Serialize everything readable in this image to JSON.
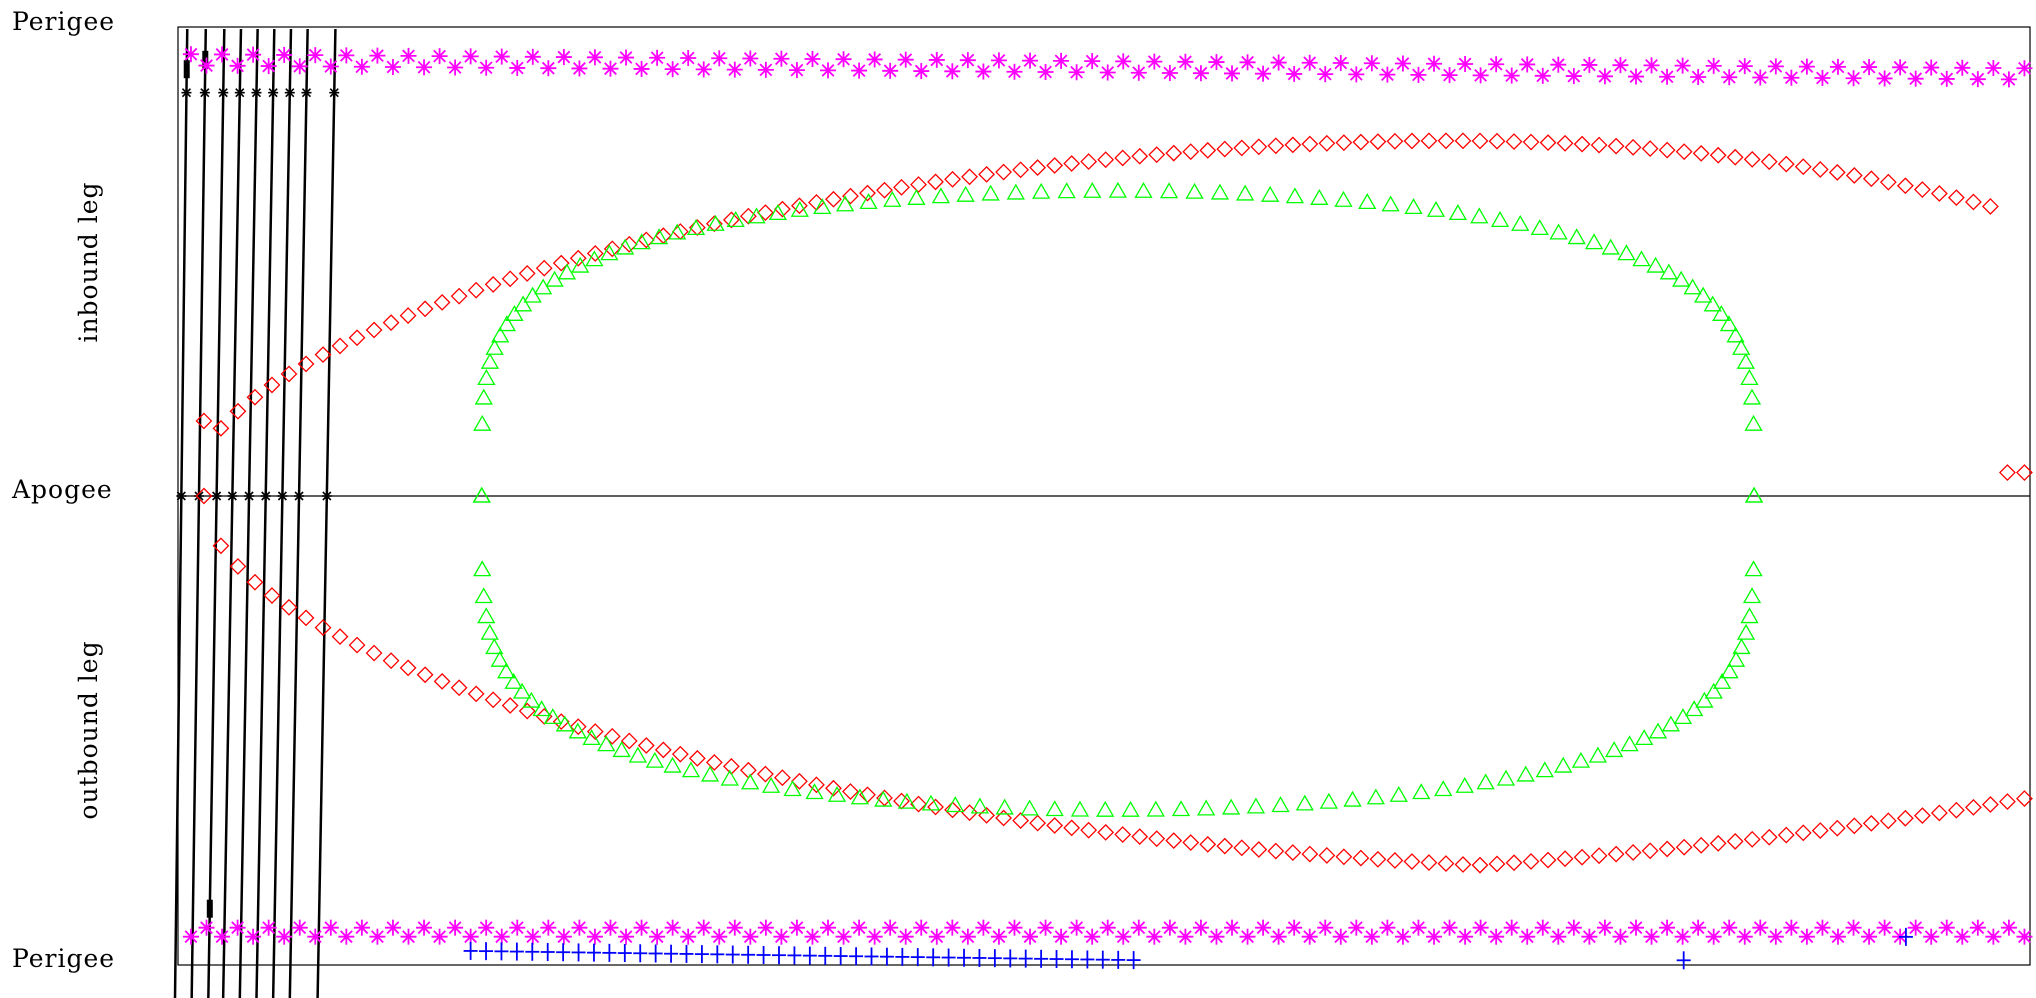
{
  "chart_data": {
    "type": "scatter",
    "title": "",
    "xlabel": "",
    "ylabel": "",
    "y_tick_labels": [
      "Perigee",
      "Apogee",
      "Perigee"
    ],
    "y_section_labels": [
      "inbound leg",
      "outbound leg"
    ],
    "xlim": [
      0,
      1
    ],
    "ylim": [
      0,
      2
    ],
    "grid": false,
    "legend": "none",
    "colors": {
      "magenta": "#ff00ff",
      "red": "#ff0000",
      "green": "#00ff00",
      "blue": "#0000ff",
      "black": "#000000"
    },
    "series": [
      {
        "marker": "asterisk",
        "color": "#ff00ff",
        "x_start": 0.007,
        "x_end": 0.997,
        "count": 119,
        "y_top": 0.07,
        "y_bottom": 1.93
      },
      {
        "marker": "diamond",
        "color": "#ff0000",
        "shape": "orbit",
        "x_min": 0.014,
        "x_max": 0.997,
        "inbound_points": 108,
        "outbound_points": 108,
        "inbound_peak_y": 0.22,
        "outbound_trough_y": 1.8,
        "inbound_end_y": 0.95,
        "outbound_end_y": 1.67
      },
      {
        "marker": "triangle",
        "color": "#00ff00",
        "shape": "orbit",
        "x_min": 0.164,
        "x_max": 0.851,
        "inbound_points": 79,
        "outbound_points": 80,
        "inbound_peak_y": 0.35,
        "outbound_trough_y": 1.67
      },
      {
        "marker": "plus",
        "color": "#0000ff",
        "clusters": [
          {
            "x_start": 0.158,
            "x_end": 0.516,
            "count": 44,
            "y": 1.97
          },
          {
            "x": 0.813,
            "y": 1.99
          },
          {
            "x": 0.933,
            "y": 1.94
          }
        ]
      },
      {
        "marker": "line",
        "color": "#000000",
        "count": 9,
        "x_at_top": [
          0.005,
          0.015,
          0.025,
          0.034,
          0.043,
          0.052,
          0.061,
          0.07,
          0.085
        ],
        "x_at_bottom": [
          0.0,
          0.009,
          0.018,
          0.026,
          0.035,
          0.044,
          0.053,
          0.062,
          0.077
        ]
      }
    ]
  }
}
